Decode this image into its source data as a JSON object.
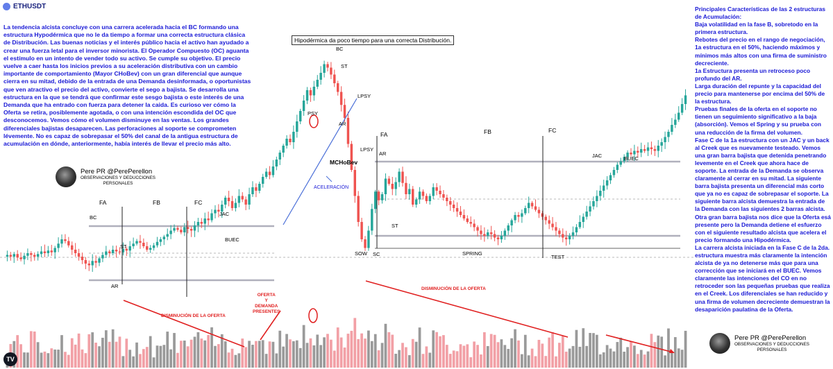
{
  "ticker": "ETHUSDT",
  "box_title": "Hipodérmica da poco tiempo para una correcta Distribución.",
  "left_text": "La tendencia alcista concluye con una carrera acelerada hacia el BC formando una estructura Hypodérmica que no le da tiempo a formar una correcta estructura clásica de Distribución. Las buenas noticias y el interés público hacia el activo han ayudado a crear una fuerza letal para el inversor minorista. El Operador Compuesto (OC) aguanta el estímulo en un intento de vender todo su activo. Se cumple su objetivo. El precio vuelve a caer hasta los inicios previos a su aceleración distributiva con un cambio importante de comportamiento (Mayor CHoBev) con un gran diferencial que aunque cierra en su mitad, debido de la entrada de una Demanda desinformada, o oportunistas que ven atractivo el precio del activo, convierte el sego a bajista. Se desarrolla una estructura en la que se tendrá que confirmar este sesgo bajista o este interés de una Demanda que ha entrado con fuerza para detener la caida. Es curioso ver cómo la Oferta se retira, posiblemente agotada, o con una intención escondida del OC que desconocemos. Vemos cómo el volumen disminuye en las ventas. Los grandes diferenciales bajistas desaparecen. Las perforaciones al soporte se comprometen lévemente. No es capaz de sobrepasar el 50% del canal de la antigua estructura de acumulación en dónde, anteriormente, había interés de llevar el precio más alto.",
  "right_paragraphs": [
    "Principales Características de las 2 estructuras de Acumulación:",
    "Baja volatilidad en la fase B, sobretodo en la primera estructura.",
    "Rebotes del precio en el rango de negociación, 1a estructura en el 50%, haciendo máximos y mínimos más altos con una firma de suministro decreciente.",
    "1a Estructura presenta un retroceso poco profundo del AR.",
    "Larga duración del repunte y la capacidad del precio para mantenerse por encima del 50% de la estructura.",
    "Pruebas finales de la oferta en el soporte no tienen un seguimiento significativo a la baja (absorción). Vemos el Spring y su prueba con una reducción de la firma del volumen.",
    "Fase C de la 1a estructura con un JAC y un back al Creek que es nuevamente testeado. Vemos una gran barra bajista que detenida penetrando levemente en el Creek que ahora hace de soporte. La entrada de la Demanda se observa claramente al cerrar en su mitad. La siguiente barra bajista presenta un diferencial más corto que ya no es capaz de sobrepasar el soporte. La siguiente barra alcista demuestra la entrada de la Demanda con las siguientes 2 barras alcista. Otra gran barra bajista nos dice que la Oferta esá presente pero la Demanda detiene el esfuerzo con el siguiente resultado alcista que acelera el precio formando una Hipodérmica.",
    "La carrera alcista iniciada en la Fase C de la 2da. estructura muestra más claramente la intención alcista de ya no detenerse más que para una corrección que se iniciará en el BUEC. Vemos claramente las intenciones del CO en no retroceder son las pequeñas pruebas que realiza en el Creek. Los diferenciales se han reducido y una firma de volumen decreciente demuestran la desaparición paulatina de la Oferta."
  ],
  "author": {
    "name": "Pere PR @PerePerellon",
    "sub1": "OBSERVACIONES Y DEDUCCIONES",
    "sub2": "PERSONALES"
  },
  "labels": {
    "fa1": "FA",
    "fb1": "FB",
    "fc1": "FC",
    "bc1": "BC",
    "ar1": "AR",
    "st1": "ST",
    "jac1": "JAC",
    "buec1": "BUEC",
    "psy": "PSY",
    "bc2": "BC",
    "st2": "ST",
    "ar2": "AR",
    "lpsy1": "LPSY",
    "lpsy2": "LPSY",
    "mchobev": "MCHoBev",
    "aceleracion": "ACELERACIÓN",
    "sow": "SOW",
    "fa2": "FA",
    "ar3": "AR",
    "st3": "ST",
    "sc": "SC",
    "fb2": "FB",
    "fc2": "FC",
    "spring": "SPRING",
    "test": "TEST",
    "jac2": "JAC",
    "buec2": "BUEC",
    "dism1": "DISMINUCIÓN DE LA OFERTA",
    "dism2": "DISMINUCIÓN DE LA OFERTA",
    "oferta_l1": "OFERTA",
    "oferta_l2": "Y",
    "oferta_l3": "DEMANDA",
    "oferta_l4": "PRESENTES"
  },
  "colors": {
    "bull": "#26a69a",
    "bear": "#ef5350",
    "vol_bull": "#9a9a9a",
    "vol_bear": "#f2a0a6",
    "level": "#b0b0bc",
    "annot_blue": "#1a1ad6",
    "annot_red": "#e02020"
  },
  "chart_data": {
    "type": "candlestick",
    "symbol": "ETHUSDT",
    "x": "bar index (unlabeled time axis)",
    "close": [
      42,
      40,
      43,
      39,
      37,
      41,
      44,
      42,
      40,
      43,
      46,
      44,
      47,
      45,
      50,
      55,
      60,
      58,
      53,
      48,
      44,
      40,
      36,
      32,
      30,
      35,
      33,
      38,
      42,
      46,
      44,
      48,
      46,
      45,
      49,
      47,
      52,
      55,
      58,
      56,
      52,
      48,
      50,
      53,
      57,
      60,
      63,
      66,
      70,
      73,
      71,
      68,
      74,
      72,
      70,
      76,
      80,
      78,
      84,
      82,
      90,
      94,
      92,
      100,
      108,
      104,
      96,
      102,
      110,
      106,
      100,
      112,
      120,
      116,
      124,
      132,
      138,
      134,
      144,
      152,
      160,
      168,
      176,
      172,
      184,
      196,
      208,
      220,
      232,
      226,
      236,
      244,
      252,
      262,
      258,
      250,
      240,
      230,
      215,
      200,
      170,
      140,
      110,
      80,
      60,
      50,
      70,
      95,
      115,
      105,
      112,
      130,
      124,
      118,
      126,
      138,
      125,
      112,
      118,
      100,
      106,
      115,
      110,
      104,
      110,
      120,
      116,
      112,
      108,
      104,
      100,
      96,
      92,
      88,
      84,
      80,
      78,
      74,
      70,
      66,
      64,
      68,
      66,
      62,
      60,
      64,
      70,
      76,
      82,
      88,
      86,
      90,
      96,
      102,
      98,
      94,
      90,
      86,
      82,
      78,
      74,
      70,
      66,
      62,
      60,
      64,
      68,
      74,
      80,
      86,
      92,
      98,
      104,
      110,
      116,
      122,
      128,
      134,
      140,
      146,
      150,
      155,
      160,
      158,
      162,
      160,
      164,
      162,
      166,
      164,
      162,
      168,
      172,
      178,
      184,
      192,
      198,
      206,
      216,
      226
    ],
    "volume_note": "Histogram below price; red highlights and red trend lines mark decreasing supply."
  }
}
